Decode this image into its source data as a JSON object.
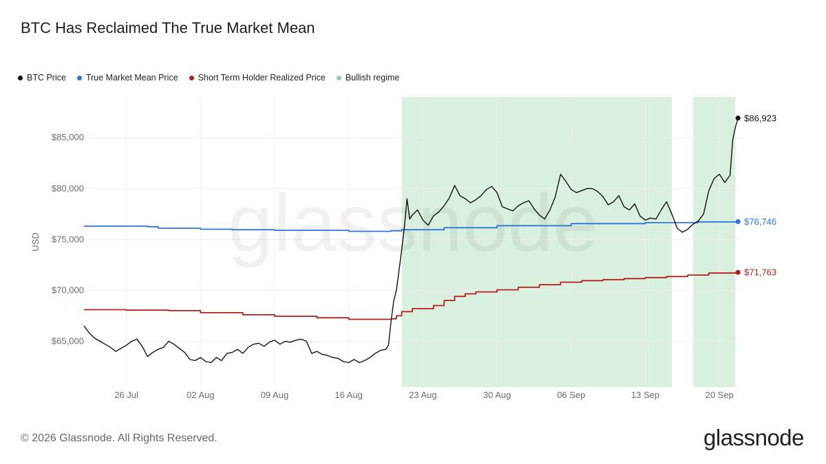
{
  "header": {
    "title": "BTC Has Reclaimed The True Market Mean"
  },
  "footer": {
    "copyright": "© 2026 Glassnode. All Rights Reserved.",
    "brand": "glassnode",
    "watermark": "glassnode"
  },
  "colors": {
    "btc": "#111111",
    "mean": "#2f74e0",
    "sth": "#b51d1d",
    "bullish": "#d9f0de",
    "grid": "#eeeeee"
  },
  "chart_data": {
    "type": "line",
    "ylabel": "USD",
    "ylim": [
      60500,
      89000
    ],
    "xlim": [
      "2024-07-22",
      "2024-09-22"
    ],
    "x_ticks": [
      {
        "date": "2024-07-26",
        "label": "26 Jul"
      },
      {
        "date": "2024-08-02",
        "label": "02 Aug"
      },
      {
        "date": "2024-08-09",
        "label": "09 Aug"
      },
      {
        "date": "2024-08-16",
        "label": "16 Aug"
      },
      {
        "date": "2024-08-23",
        "label": "23 Aug"
      },
      {
        "date": "2024-08-30",
        "label": "30 Aug"
      },
      {
        "date": "2024-09-06",
        "label": "06 Sep"
      },
      {
        "date": "2024-09-13",
        "label": "13 Sep"
      },
      {
        "date": "2024-09-20",
        "label": "20 Sep"
      }
    ],
    "y_ticks": [
      {
        "value": 65000,
        "label": "$65,000"
      },
      {
        "value": 70000,
        "label": "$70,000"
      },
      {
        "value": 75000,
        "label": "$75,000"
      },
      {
        "value": 80000,
        "label": "$80,000"
      },
      {
        "value": 85000,
        "label": "$85,000"
      }
    ],
    "bullish_regimes": [
      {
        "start": "2024-08-21T00:00",
        "end": "2024-09-15T12:00"
      },
      {
        "start": "2024-09-17T12:00",
        "end": "2024-09-21T12:00"
      }
    ],
    "series": [
      {
        "name": "BTC Price",
        "key": "btc",
        "end_label": "$86,923",
        "points": [
          [
            "2024-07-22T00:00",
            66500
          ],
          [
            "2024-07-22T12:00",
            65800
          ],
          [
            "2024-07-23T00:00",
            65300
          ],
          [
            "2024-07-23T12:00",
            65000
          ],
          [
            "2024-07-24T00:00",
            64700
          ],
          [
            "2024-07-24T12:00",
            64400
          ],
          [
            "2024-07-25T00:00",
            64000
          ],
          [
            "2024-07-25T12:00",
            64300
          ],
          [
            "2024-07-26T00:00",
            64600
          ],
          [
            "2024-07-26T12:00",
            65000
          ],
          [
            "2024-07-27T00:00",
            65200
          ],
          [
            "2024-07-27T12:00",
            64500
          ],
          [
            "2024-07-28T00:00",
            63500
          ],
          [
            "2024-07-28T12:00",
            63900
          ],
          [
            "2024-07-29T00:00",
            64200
          ],
          [
            "2024-07-29T12:00",
            64400
          ],
          [
            "2024-07-30T00:00",
            65000
          ],
          [
            "2024-07-30T12:00",
            64700
          ],
          [
            "2024-07-31T00:00",
            64300
          ],
          [
            "2024-07-31T12:00",
            63900
          ],
          [
            "2024-08-01T00:00",
            63200
          ],
          [
            "2024-08-01T12:00",
            63100
          ],
          [
            "2024-08-02T00:00",
            63400
          ],
          [
            "2024-08-02T12:00",
            63000
          ],
          [
            "2024-08-03T00:00",
            62900
          ],
          [
            "2024-08-03T12:00",
            63400
          ],
          [
            "2024-08-04T00:00",
            63100
          ],
          [
            "2024-08-04T12:00",
            63800
          ],
          [
            "2024-08-05T00:00",
            63900
          ],
          [
            "2024-08-05T12:00",
            64200
          ],
          [
            "2024-08-06T00:00",
            63800
          ],
          [
            "2024-08-06T12:00",
            64400
          ],
          [
            "2024-08-07T00:00",
            64700
          ],
          [
            "2024-08-07T12:00",
            64800
          ],
          [
            "2024-08-08T00:00",
            64500
          ],
          [
            "2024-08-08T12:00",
            64900
          ],
          [
            "2024-08-09T00:00",
            65100
          ],
          [
            "2024-08-09T12:00",
            64700
          ],
          [
            "2024-08-10T00:00",
            65000
          ],
          [
            "2024-08-10T12:00",
            64900
          ],
          [
            "2024-08-11T00:00",
            65100
          ],
          [
            "2024-08-11T12:00",
            65200
          ],
          [
            "2024-08-12T00:00",
            65000
          ],
          [
            "2024-08-12T12:00",
            63800
          ],
          [
            "2024-08-13T00:00",
            64000
          ],
          [
            "2024-08-13T12:00",
            63700
          ],
          [
            "2024-08-14T00:00",
            63600
          ],
          [
            "2024-08-14T12:00",
            63400
          ],
          [
            "2024-08-15T00:00",
            63300
          ],
          [
            "2024-08-15T12:00",
            63000
          ],
          [
            "2024-08-16T00:00",
            62900
          ],
          [
            "2024-08-16T12:00",
            63200
          ],
          [
            "2024-08-17T00:00",
            62900
          ],
          [
            "2024-08-17T12:00",
            63100
          ],
          [
            "2024-08-18T00:00",
            63400
          ],
          [
            "2024-08-18T12:00",
            63800
          ],
          [
            "2024-08-19T00:00",
            64100
          ],
          [
            "2024-08-19T12:00",
            64200
          ],
          [
            "2024-08-19T18:00",
            64600
          ],
          [
            "2024-08-20T00:00",
            67000
          ],
          [
            "2024-08-20T06:00",
            69000
          ],
          [
            "2024-08-20T12:00",
            70000
          ],
          [
            "2024-08-20T18:00",
            72000
          ],
          [
            "2024-08-21T00:00",
            74000
          ],
          [
            "2024-08-21T06:00",
            76200
          ],
          [
            "2024-08-21T12:00",
            79000
          ],
          [
            "2024-08-21T18:00",
            77000
          ],
          [
            "2024-08-22T00:00",
            77400
          ],
          [
            "2024-08-22T12:00",
            77900
          ],
          [
            "2024-08-23T00:00",
            76900
          ],
          [
            "2024-08-23T12:00",
            76400
          ],
          [
            "2024-08-24T00:00",
            77300
          ],
          [
            "2024-08-24T12:00",
            77700
          ],
          [
            "2024-08-25T00:00",
            78300
          ],
          [
            "2024-08-25T12:00",
            79100
          ],
          [
            "2024-08-26T00:00",
            80300
          ],
          [
            "2024-08-26T12:00",
            79300
          ],
          [
            "2024-08-27T00:00",
            79000
          ],
          [
            "2024-08-27T12:00",
            78600
          ],
          [
            "2024-08-28T00:00",
            78900
          ],
          [
            "2024-08-28T12:00",
            79300
          ],
          [
            "2024-08-29T00:00",
            79900
          ],
          [
            "2024-08-29T12:00",
            80200
          ],
          [
            "2024-08-30T00:00",
            79600
          ],
          [
            "2024-08-30T12:00",
            78200
          ],
          [
            "2024-08-31T00:00",
            78000
          ],
          [
            "2024-08-31T12:00",
            77800
          ],
          [
            "2024-09-01T00:00",
            78300
          ],
          [
            "2024-09-01T12:00",
            78600
          ],
          [
            "2024-09-02T00:00",
            78800
          ],
          [
            "2024-09-02T12:00",
            78000
          ],
          [
            "2024-09-03T00:00",
            77400
          ],
          [
            "2024-09-03T12:00",
            77000
          ],
          [
            "2024-09-04T00:00",
            77900
          ],
          [
            "2024-09-04T12:00",
            79200
          ],
          [
            "2024-09-05T00:00",
            81400
          ],
          [
            "2024-09-05T12:00",
            80700
          ],
          [
            "2024-09-06T00:00",
            79900
          ],
          [
            "2024-09-06T12:00",
            79600
          ],
          [
            "2024-09-07T00:00",
            79800
          ],
          [
            "2024-09-07T12:00",
            80000
          ],
          [
            "2024-09-08T00:00",
            80000
          ],
          [
            "2024-09-08T12:00",
            79700
          ],
          [
            "2024-09-09T00:00",
            79200
          ],
          [
            "2024-09-09T12:00",
            78400
          ],
          [
            "2024-09-10T00:00",
            78700
          ],
          [
            "2024-09-10T12:00",
            79300
          ],
          [
            "2024-09-11T00:00",
            78200
          ],
          [
            "2024-09-11T12:00",
            77900
          ],
          [
            "2024-09-12T00:00",
            78500
          ],
          [
            "2024-09-12T12:00",
            77300
          ],
          [
            "2024-09-13T00:00",
            76900
          ],
          [
            "2024-09-13T12:00",
            77100
          ],
          [
            "2024-09-14T00:00",
            77000
          ],
          [
            "2024-09-14T12:00",
            77900
          ],
          [
            "2024-09-15T00:00",
            78700
          ],
          [
            "2024-09-15T12:00",
            77500
          ],
          [
            "2024-09-16T00:00",
            76100
          ],
          [
            "2024-09-16T12:00",
            75700
          ],
          [
            "2024-09-17T00:00",
            76000
          ],
          [
            "2024-09-17T12:00",
            76500
          ],
          [
            "2024-09-18T00:00",
            76800
          ],
          [
            "2024-09-18T12:00",
            77500
          ],
          [
            "2024-09-19T00:00",
            79800
          ],
          [
            "2024-09-19T12:00",
            81000
          ],
          [
            "2024-09-20T00:00",
            81400
          ],
          [
            "2024-09-20T12:00",
            80600
          ],
          [
            "2024-09-21T00:00",
            81300
          ],
          [
            "2024-09-21T06:00",
            84800
          ],
          [
            "2024-09-21T12:00",
            86000
          ],
          [
            "2024-09-21T18:00",
            86923
          ]
        ]
      },
      {
        "name": "True Market Mean Price",
        "key": "mean",
        "end_label": "$76,746",
        "points": [
          [
            "2024-07-22T00:00",
            76300
          ],
          [
            "2024-07-28T00:00",
            76250
          ],
          [
            "2024-07-29T00:00",
            76100
          ],
          [
            "2024-08-02T00:00",
            76000
          ],
          [
            "2024-08-05T00:00",
            75950
          ],
          [
            "2024-08-09T00:00",
            75900
          ],
          [
            "2024-08-16T00:00",
            75800
          ],
          [
            "2024-08-20T00:00",
            75850
          ],
          [
            "2024-08-21T00:00",
            75950
          ],
          [
            "2024-08-25T00:00",
            76150
          ],
          [
            "2024-08-30T00:00",
            76350
          ],
          [
            "2024-09-06T00:00",
            76550
          ],
          [
            "2024-09-13T00:00",
            76650
          ],
          [
            "2024-09-18T00:00",
            76720
          ],
          [
            "2024-09-21T18:00",
            76746
          ]
        ]
      },
      {
        "name": "Short Term Holder Realized Price",
        "key": "sth",
        "end_label": "$71,763",
        "points": [
          [
            "2024-07-22T00:00",
            68100
          ],
          [
            "2024-07-26T00:00",
            68050
          ],
          [
            "2024-07-30T00:00",
            68000
          ],
          [
            "2024-08-02T00:00",
            67800
          ],
          [
            "2024-08-06T00:00",
            67600
          ],
          [
            "2024-08-09T00:00",
            67450
          ],
          [
            "2024-08-13T00:00",
            67300
          ],
          [
            "2024-08-16T00:00",
            67150
          ],
          [
            "2024-08-20T00:00",
            67200
          ],
          [
            "2024-08-20T12:00",
            67500
          ],
          [
            "2024-08-21T00:00",
            67900
          ],
          [
            "2024-08-22T00:00",
            68200
          ],
          [
            "2024-08-24T00:00",
            68500
          ],
          [
            "2024-08-25T00:00",
            69000
          ],
          [
            "2024-08-26T00:00",
            69400
          ],
          [
            "2024-08-27T00:00",
            69650
          ],
          [
            "2024-08-28T00:00",
            69850
          ],
          [
            "2024-08-30T00:00",
            70050
          ],
          [
            "2024-09-01T00:00",
            70300
          ],
          [
            "2024-09-03T00:00",
            70550
          ],
          [
            "2024-09-05T00:00",
            70800
          ],
          [
            "2024-09-07T00:00",
            70950
          ],
          [
            "2024-09-09T00:00",
            71050
          ],
          [
            "2024-09-11T00:00",
            71150
          ],
          [
            "2024-09-13T00:00",
            71250
          ],
          [
            "2024-09-15T00:00",
            71350
          ],
          [
            "2024-09-17T00:00",
            71500
          ],
          [
            "2024-09-19T00:00",
            71700
          ],
          [
            "2024-09-21T18:00",
            71763
          ]
        ]
      }
    ],
    "legend": [
      {
        "label": "BTC Price",
        "color": "#111111"
      },
      {
        "label": "True Market Mean Price",
        "color": "#2f74e0"
      },
      {
        "label": "Short Term Holder Realized Price",
        "color": "#b51d1d"
      },
      {
        "label": "Bullish regime",
        "color": "#93cfa2"
      }
    ]
  }
}
